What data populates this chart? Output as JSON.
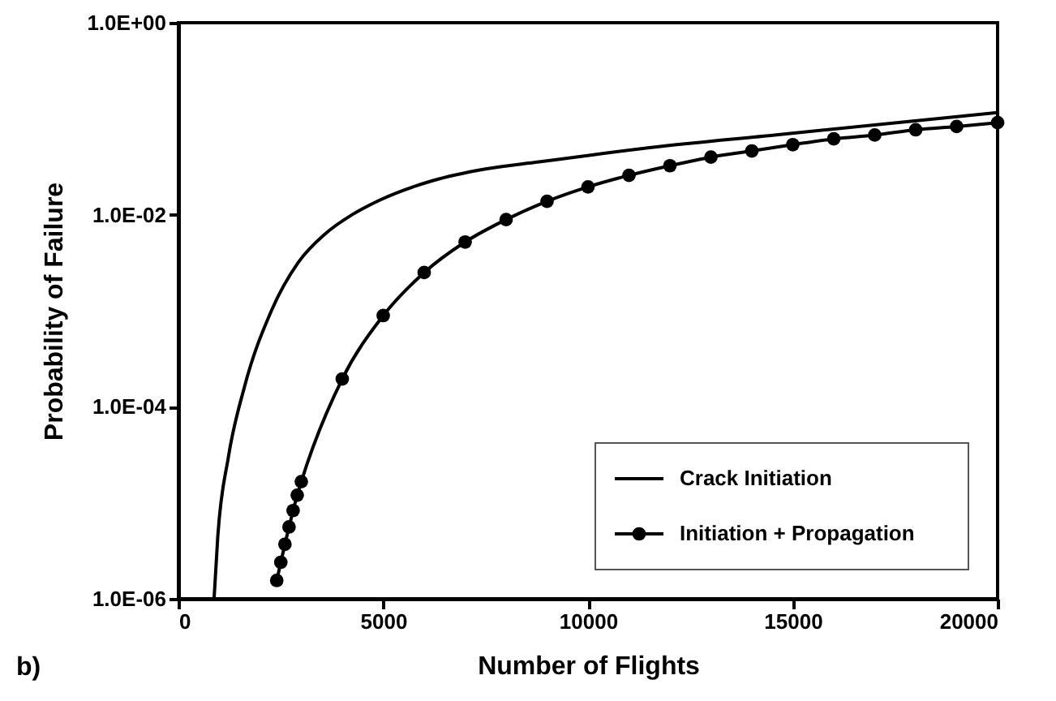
{
  "chart_data": {
    "type": "line",
    "xlabel": "Number of Flights",
    "ylabel": "Probability of Failure",
    "annotations": [
      "b)"
    ],
    "xlim": [
      0,
      20000
    ],
    "xticks": [
      0,
      5000,
      10000,
      15000,
      20000
    ],
    "ylim": [
      1e-06,
      1
    ],
    "log": "y",
    "yticks": [
      {
        "value": 1e-06,
        "label": "1.0E-06"
      },
      {
        "value": 0.0001,
        "label": "1.0E-04"
      },
      {
        "value": 0.01,
        "label": "1.0E-02"
      },
      {
        "value": 1,
        "label": "1.0E+00"
      }
    ],
    "grid": false,
    "legend": "bottom right",
    "series": [
      {
        "name": "Crack Initiation",
        "color": "#000000",
        "marker": "none",
        "line_style": "solid",
        "x": [
          870,
          960,
          1220,
          1610,
          2270,
          2930,
          3580,
          4240,
          4900,
          6200,
          7500,
          8800,
          10100,
          11500,
          14600,
          20000
        ],
        "values": [
          1e-06,
          4.4e-06,
          3e-05,
          0.00016,
          0.001,
          0.0032,
          0.0063,
          0.01,
          0.0141,
          0.0226,
          0.03,
          0.0355,
          0.042,
          0.05,
          0.068,
          0.116
        ]
      },
      {
        "name": "Initiation + Propagation",
        "color": "#000000",
        "marker": "circle",
        "line_style": "solid",
        "x": [
          2400,
          2500,
          2600,
          2700,
          2800,
          2900,
          3000,
          4000,
          5000,
          6000,
          7000,
          8000,
          9000,
          10000,
          11000,
          12000,
          13000,
          14000,
          15000,
          16000,
          17000,
          18000,
          19000,
          20000
        ],
        "values": [
          1.55e-06,
          2.4e-06,
          3.7e-06,
          5.6e-06,
          8.3e-06,
          1.2e-05,
          1.66e-05,
          0.000195,
          0.00089,
          0.0025,
          0.0052,
          0.0089,
          0.0138,
          0.0195,
          0.0257,
          0.0324,
          0.0398,
          0.0462,
          0.0537,
          0.0617,
          0.0676,
          0.0767,
          0.083,
          0.091
        ]
      }
    ]
  }
}
